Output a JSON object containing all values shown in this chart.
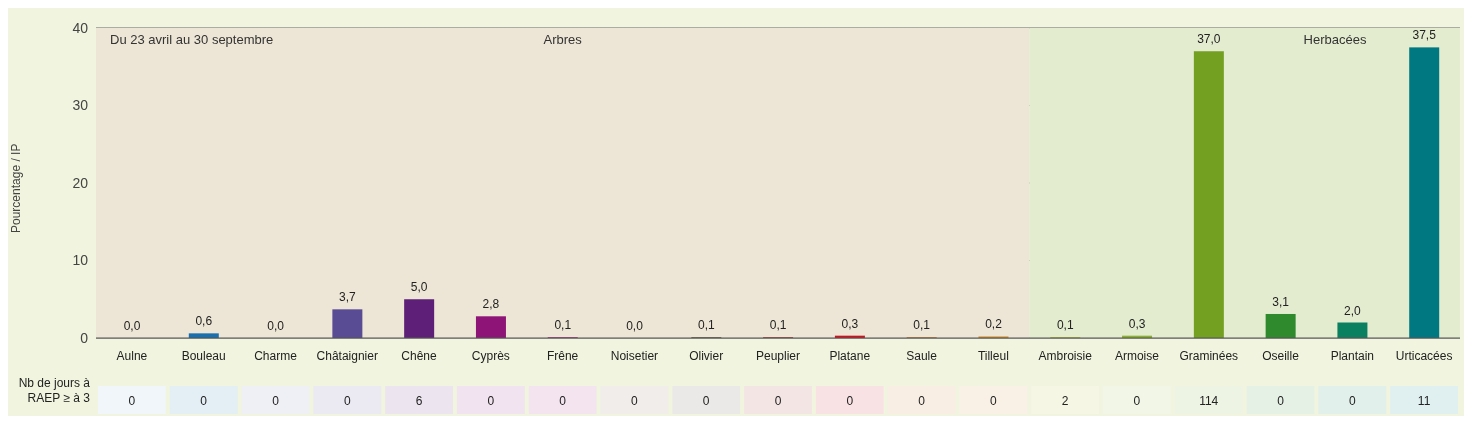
{
  "chart_data": {
    "type": "bar",
    "ylabel": "Pourcentage / IP",
    "categories": [
      "Aulne",
      "Bouleau",
      "Charme",
      "Châtaignier",
      "Chêne",
      "Cyprès",
      "Frêne",
      "Noisetier",
      "Olivier",
      "Peuplier",
      "Platane",
      "Saule",
      "Tilleul",
      "Ambroisie",
      "Armoise",
      "Graminées",
      "Oseille",
      "Plantain",
      "Urticacées"
    ],
    "values": [
      0.0,
      0.6,
      0.0,
      3.7,
      5.0,
      2.8,
      0.1,
      0.0,
      0.1,
      0.1,
      0.3,
      0.1,
      0.2,
      0.1,
      0.3,
      37.0,
      3.1,
      2.0,
      37.5
    ],
    "value_labels": [
      "0,0",
      "0,6",
      "0,0",
      "3,7",
      "5,0",
      "2,8",
      "0,1",
      "0,0",
      "0,1",
      "0,1",
      "0,3",
      "0,1",
      "0,2",
      "0,1",
      "0,3",
      "37,0",
      "3,1",
      "2,0",
      "37,5"
    ],
    "colors": [
      "#8cb8d8",
      "#1a6faf",
      "#7a78b0",
      "#5a4c94",
      "#5e1f78",
      "#8e1577",
      "#a01a7c",
      "#8a6a5a",
      "#5a4a3a",
      "#a0282a",
      "#d0101e",
      "#c8701e",
      "#d08a2a",
      "#b0b020",
      "#8cb030",
      "#73a020",
      "#2f8a2e",
      "#0b8060",
      "#007882"
    ],
    "ylim": [
      0,
      40
    ],
    "yticks": [
      0,
      10,
      20,
      30,
      40
    ],
    "grid": "y",
    "bands": [
      {
        "axis": "x",
        "from": "Aulne",
        "to": "Tilleul",
        "label": "Arbres",
        "color": "#ede6d6"
      },
      {
        "axis": "x",
        "from": "Ambroisie",
        "to": "Urticacées",
        "label": "Herbacées",
        "color": "#e4ecd0"
      }
    ],
    "annotations": [
      "Du 23 avril au 30 septembre",
      "Nb de jours à RAEP ≥ à 3",
      "0",
      "0",
      "0",
      "0",
      "6",
      "0",
      "0",
      "0",
      "0",
      "0",
      "0",
      "0",
      "0",
      "2",
      "0",
      "114",
      "0",
      "0",
      "11"
    ]
  }
}
